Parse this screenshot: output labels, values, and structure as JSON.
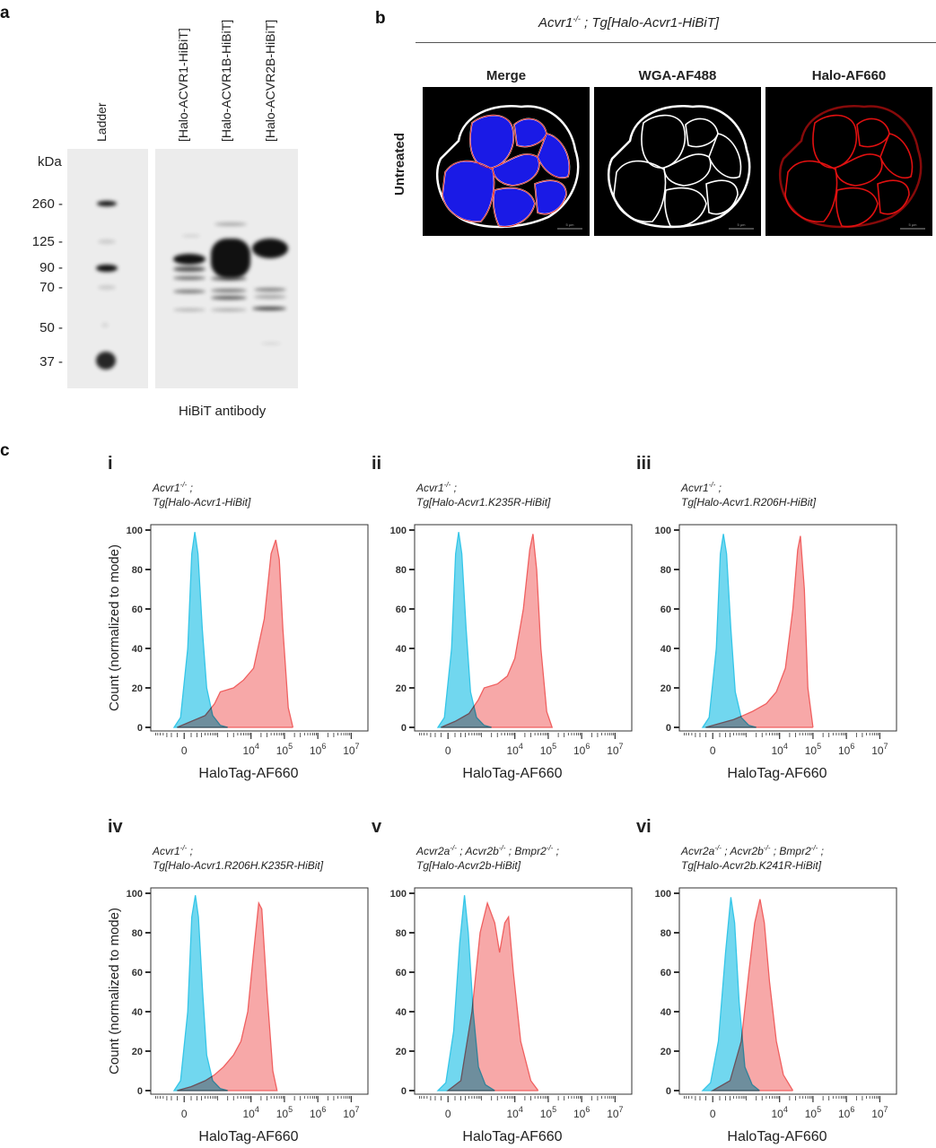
{
  "panel_labels": {
    "a": "a",
    "b": "b",
    "c": "c"
  },
  "western": {
    "lanes": [
      "Ladder",
      "[Halo-ACVR1-HiBiT]",
      "[Halo-ACVR1B-HiBiT]",
      "[Halo-ACVR2B-HiBiT]"
    ],
    "unit": "kDa",
    "markers": [
      "260 -",
      "125 -",
      "90 -",
      "70 -",
      "50 -",
      "37 -"
    ],
    "antibody": "HiBiT antibody"
  },
  "microscopy": {
    "genotype": "Acvr1",
    "genotype_sup": "-/-",
    "genotype_rest": " ; Tg[Halo-Acvr1-HiBiT]",
    "row_label": "Untreated",
    "channels": [
      "Merge",
      "WGA-AF488",
      "Halo-AF660"
    ],
    "scale_bar": "5 µm",
    "colors": {
      "nuclei": "#1a1ae6",
      "membrane_wga": "#ffffff",
      "halo": "#e01010"
    }
  },
  "chart_data": [
    {
      "type": "area",
      "numeral": "i",
      "title_lines": [
        [
          "Acvr1",
          "-/-",
          " ;"
        ],
        [
          "Tg[Halo-Acvr1-HiBit]"
        ]
      ],
      "xlabel": "HaloTag-AF660",
      "ylabel": "Count (normalized to mode)",
      "xscale": "biexponential",
      "ylim": [
        0,
        100
      ],
      "yticks": [
        "0",
        "20",
        "40",
        "60",
        "80",
        "100"
      ],
      "xticks": [
        {
          "v": 0,
          "label": "0"
        },
        {
          "v": 10000,
          "label": "10",
          "exp": "4"
        },
        {
          "v": 100000,
          "label": "10",
          "exp": "5"
        },
        {
          "v": 1000000,
          "label": "10",
          "exp": "6"
        },
        {
          "v": 10000000,
          "label": "10",
          "exp": "7"
        }
      ],
      "series": [
        {
          "color": "#35c6e8",
          "points": [
            [
              -150,
              0
            ],
            [
              -50,
              5
            ],
            [
              50,
              40
            ],
            [
              110,
              88
            ],
            [
              160,
              99
            ],
            [
              220,
              88
            ],
            [
              320,
              50
            ],
            [
              450,
              20
            ],
            [
              700,
              6
            ],
            [
              1200,
              1
            ],
            [
              2000,
              0
            ]
          ]
        },
        {
          "color": "#f06060",
          "points": [
            [
              -100,
              0
            ],
            [
              100,
              3
            ],
            [
              400,
              6
            ],
            [
              800,
              12
            ],
            [
              1200,
              18
            ],
            [
              3000,
              20
            ],
            [
              6000,
              24
            ],
            [
              12000,
              30
            ],
            [
              25000,
              55
            ],
            [
              40000,
              88
            ],
            [
              55000,
              95
            ],
            [
              70000,
              85
            ],
            [
              90000,
              50
            ],
            [
              130000,
              10
            ],
            [
              180000,
              0
            ]
          ]
        }
      ]
    },
    {
      "type": "area",
      "numeral": "ii",
      "title_lines": [
        [
          "Acvr1",
          "-/-",
          " ;"
        ],
        [
          "Tg[Halo-Acvr1.K235R-HiBit]"
        ]
      ],
      "xlabel": "HaloTag-AF660",
      "ylabel": "",
      "xscale": "biexponential",
      "ylim": [
        0,
        100
      ],
      "yticks": [
        "0",
        "20",
        "40",
        "60",
        "80",
        "100"
      ],
      "xticks": [
        {
          "v": 0,
          "label": "0"
        },
        {
          "v": 10000,
          "label": "10",
          "exp": "4"
        },
        {
          "v": 100000,
          "label": "10",
          "exp": "5"
        },
        {
          "v": 1000000,
          "label": "10",
          "exp": "6"
        },
        {
          "v": 10000000,
          "label": "10",
          "exp": "7"
        }
      ],
      "series": [
        {
          "color": "#35c6e8",
          "points": [
            [
              -150,
              0
            ],
            [
              -50,
              5
            ],
            [
              50,
              40
            ],
            [
              110,
              88
            ],
            [
              160,
              99
            ],
            [
              220,
              88
            ],
            [
              320,
              50
            ],
            [
              450,
              18
            ],
            [
              700,
              5
            ],
            [
              1200,
              1
            ],
            [
              2000,
              0
            ]
          ]
        },
        {
          "color": "#f06060",
          "points": [
            [
              -100,
              0
            ],
            [
              100,
              3
            ],
            [
              400,
              7
            ],
            [
              800,
              14
            ],
            [
              1200,
              20
            ],
            [
              3000,
              22
            ],
            [
              6000,
              26
            ],
            [
              10000,
              35
            ],
            [
              18000,
              60
            ],
            [
              28000,
              90
            ],
            [
              35000,
              98
            ],
            [
              45000,
              80
            ],
            [
              60000,
              40
            ],
            [
              90000,
              8
            ],
            [
              130000,
              0
            ]
          ]
        }
      ]
    },
    {
      "type": "area",
      "numeral": "iii",
      "title_lines": [
        [
          "Acvr1",
          "-/-",
          " ;"
        ],
        [
          "Tg[Halo-Acvr1.R206H-HiBit]"
        ]
      ],
      "xlabel": "HaloTag-AF660",
      "ylabel": "",
      "xscale": "biexponential",
      "ylim": [
        0,
        100
      ],
      "yticks": [
        "0",
        "20",
        "40",
        "60",
        "80",
        "100"
      ],
      "xticks": [
        {
          "v": 0,
          "label": "0"
        },
        {
          "v": 10000,
          "label": "10",
          "exp": "4"
        },
        {
          "v": 100000,
          "label": "10",
          "exp": "5"
        },
        {
          "v": 1000000,
          "label": "10",
          "exp": "6"
        },
        {
          "v": 10000000,
          "label": "10",
          "exp": "7"
        }
      ],
      "series": [
        {
          "color": "#35c6e8",
          "points": [
            [
              -150,
              0
            ],
            [
              -50,
              5
            ],
            [
              50,
              40
            ],
            [
              110,
              88
            ],
            [
              160,
              98
            ],
            [
              220,
              88
            ],
            [
              320,
              50
            ],
            [
              450,
              18
            ],
            [
              700,
              5
            ],
            [
              1200,
              1
            ],
            [
              2000,
              0
            ]
          ]
        },
        {
          "color": "#f06060",
          "points": [
            [
              -100,
              0
            ],
            [
              100,
              2
            ],
            [
              400,
              4
            ],
            [
              800,
              6
            ],
            [
              1500,
              8
            ],
            [
              4000,
              12
            ],
            [
              8000,
              18
            ],
            [
              15000,
              30
            ],
            [
              25000,
              60
            ],
            [
              35000,
              90
            ],
            [
              42000,
              97
            ],
            [
              55000,
              70
            ],
            [
              70000,
              20
            ],
            [
              100000,
              0
            ]
          ]
        }
      ]
    },
    {
      "type": "area",
      "numeral": "iv",
      "title_lines": [
        [
          "Acvr1",
          "-/-",
          " ;"
        ],
        [
          "Tg[Halo-Acvr1.R206H.K235R-HiBit]"
        ]
      ],
      "xlabel": "HaloTag-AF660",
      "ylabel": "Count (normalized to mode)",
      "xscale": "biexponential",
      "ylim": [
        0,
        100
      ],
      "yticks": [
        "0",
        "20",
        "40",
        "60",
        "80",
        "100"
      ],
      "xticks": [
        {
          "v": 0,
          "label": "0"
        },
        {
          "v": 10000,
          "label": "10",
          "exp": "4"
        },
        {
          "v": 100000,
          "label": "10",
          "exp": "5"
        },
        {
          "v": 1000000,
          "label": "10",
          "exp": "6"
        },
        {
          "v": 10000000,
          "label": "10",
          "exp": "7"
        }
      ],
      "series": [
        {
          "color": "#35c6e8",
          "points": [
            [
              -150,
              0
            ],
            [
              -50,
              5
            ],
            [
              50,
              40
            ],
            [
              110,
              88
            ],
            [
              170,
              99
            ],
            [
              230,
              88
            ],
            [
              330,
              50
            ],
            [
              450,
              18
            ],
            [
              700,
              5
            ],
            [
              1200,
              1
            ],
            [
              2000,
              0
            ]
          ]
        },
        {
          "color": "#f06060",
          "points": [
            [
              -100,
              0
            ],
            [
              100,
              2
            ],
            [
              400,
              5
            ],
            [
              800,
              8
            ],
            [
              1500,
              12
            ],
            [
              3000,
              18
            ],
            [
              5000,
              25
            ],
            [
              8000,
              40
            ],
            [
              12000,
              70
            ],
            [
              17000,
              95
            ],
            [
              21000,
              92
            ],
            [
              30000,
              50
            ],
            [
              45000,
              10
            ],
            [
              60000,
              0
            ]
          ]
        }
      ]
    },
    {
      "type": "area",
      "numeral": "v",
      "title_lines": [
        [
          "Acvr2a",
          "-/-",
          " ; "
        ],
        [
          "Acvr2b",
          "-/-",
          " ; "
        ],
        [
          "Bmpr2",
          "-/-",
          " ;"
        ],
        [
          "Tg[Halo-Acvr2b-HiBit]"
        ]
      ],
      "xlabel": "HaloTag-AF660",
      "ylabel": "",
      "xscale": "biexponential",
      "ylim": [
        0,
        100
      ],
      "yticks": [
        "0",
        "20",
        "40",
        "60",
        "80",
        "100"
      ],
      "xticks": [
        {
          "v": 0,
          "label": "0"
        },
        {
          "v": 10000,
          "label": "10",
          "exp": "4"
        },
        {
          "v": 100000,
          "label": "10",
          "exp": "5"
        },
        {
          "v": 1000000,
          "label": "10",
          "exp": "6"
        },
        {
          "v": 10000000,
          "label": "10",
          "exp": "7"
        }
      ],
      "series": [
        {
          "color": "#35c6e8",
          "points": [
            [
              -150,
              0
            ],
            [
              -30,
              4
            ],
            [
              80,
              30
            ],
            [
              180,
              75
            ],
            [
              280,
              99
            ],
            [
              380,
              80
            ],
            [
              550,
              40
            ],
            [
              800,
              12
            ],
            [
              1300,
              3
            ],
            [
              2500,
              0
            ]
          ]
        },
        {
          "color": "#f06060",
          "points": [
            [
              0,
              0
            ],
            [
              200,
              5
            ],
            [
              500,
              40
            ],
            [
              900,
              80
            ],
            [
              1500,
              95
            ],
            [
              2500,
              85
            ],
            [
              3500,
              70
            ],
            [
              5000,
              85
            ],
            [
              6500,
              88
            ],
            [
              9000,
              60
            ],
            [
              15000,
              25
            ],
            [
              30000,
              5
            ],
            [
              50000,
              0
            ]
          ]
        }
      ]
    },
    {
      "type": "area",
      "numeral": "vi",
      "title_lines": [
        [
          "Acvr2a",
          "-/-",
          " ; "
        ],
        [
          "Acvr2b",
          "-/-",
          " ; "
        ],
        [
          "Bmpr2",
          "-/-",
          " ;"
        ],
        [
          "Tg[Halo-Acvr2b.K241R-HiBit]"
        ]
      ],
      "xlabel": "HaloTag-AF660",
      "ylabel": "",
      "xscale": "biexponential",
      "ylim": [
        0,
        100
      ],
      "yticks": [
        "0",
        "20",
        "40",
        "60",
        "80",
        "100"
      ],
      "xticks": [
        {
          "v": 0,
          "label": "0"
        },
        {
          "v": 10000,
          "label": "10",
          "exp": "4"
        },
        {
          "v": 100000,
          "label": "10",
          "exp": "5"
        },
        {
          "v": 1000000,
          "label": "10",
          "exp": "6"
        },
        {
          "v": 10000000,
          "label": "10",
          "exp": "7"
        }
      ],
      "series": [
        {
          "color": "#35c6e8",
          "points": [
            [
              -150,
              0
            ],
            [
              -30,
              4
            ],
            [
              80,
              25
            ],
            [
              200,
              70
            ],
            [
              320,
              98
            ],
            [
              430,
              85
            ],
            [
              600,
              45
            ],
            [
              900,
              12
            ],
            [
              1500,
              3
            ],
            [
              2500,
              0
            ]
          ]
        },
        {
          "color": "#f06060",
          "points": [
            [
              0,
              0
            ],
            [
              300,
              5
            ],
            [
              700,
              25
            ],
            [
              1200,
              60
            ],
            [
              1800,
              85
            ],
            [
              2600,
              97
            ],
            [
              3500,
              85
            ],
            [
              5000,
              55
            ],
            [
              8000,
              25
            ],
            [
              13000,
              8
            ],
            [
              25000,
              0
            ]
          ]
        }
      ]
    }
  ]
}
